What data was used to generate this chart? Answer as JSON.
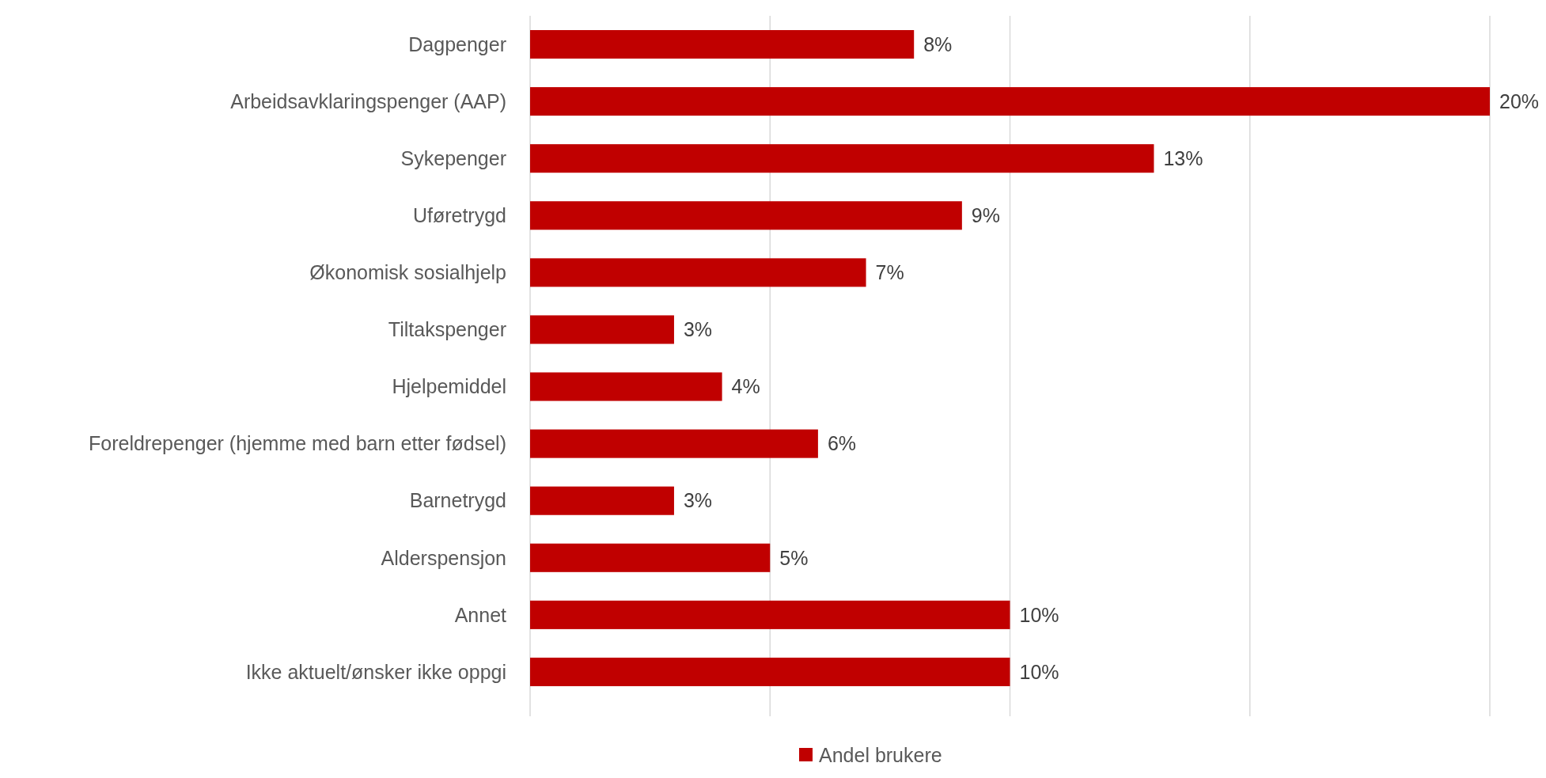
{
  "chart_data": {
    "type": "bar",
    "orientation": "horizontal",
    "categories": [
      "Dagpenger",
      "Arbeidsavklaringspenger (AAP)",
      "Sykepenger",
      "Uføretrygd",
      "Økonomisk sosialhjelp",
      "Tiltakspenger",
      "Hjelpemiddel",
      "Foreldrepenger (hjemme med barn etter fødsel)",
      "Barnetrygd",
      "Alderspensjon",
      "Annet",
      "Ikke aktuelt/ønsker ikke oppgi"
    ],
    "series": [
      {
        "name": "Andel brukere",
        "color": "#c00000",
        "values": [
          8,
          20,
          13,
          9,
          7,
          3,
          4,
          6,
          3,
          5,
          10,
          10
        ],
        "value_labels": [
          "8%",
          "20%",
          "13%",
          "9%",
          "7%",
          "3%",
          "4%",
          "6%",
          "3%",
          "5%",
          "10%",
          "10%"
        ]
      }
    ],
    "xlim": [
      0,
      20
    ],
    "xticks": [
      {
        "value": 0,
        "label": null
      },
      {
        "value": 5,
        "label": null
      },
      {
        "value": 10,
        "label": null
      },
      {
        "value": 15,
        "label": null
      },
      {
        "value": 20,
        "label": null
      }
    ],
    "grid": "x",
    "tick_labels": "y",
    "legend": "bottom"
  }
}
